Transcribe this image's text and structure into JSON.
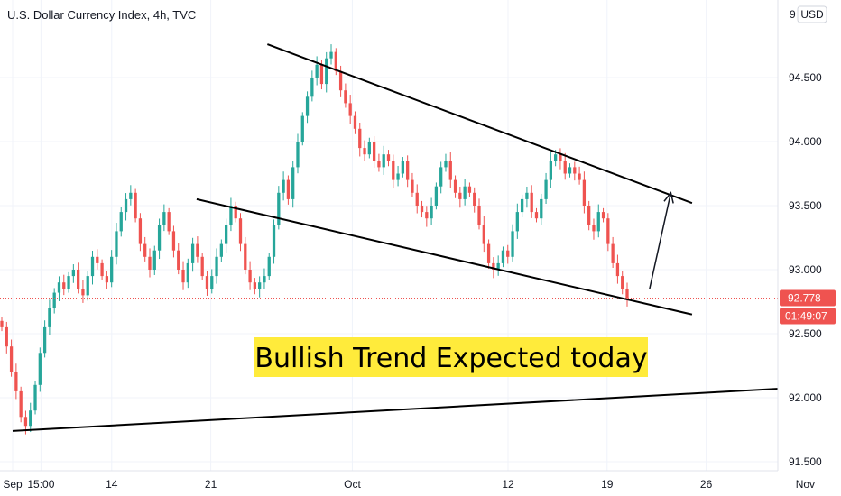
{
  "header": {
    "title": "U.S. Dollar Currency Index, 4h, TVC",
    "currency": "USD",
    "price_axis_top_partial": "9"
  },
  "chart_data": {
    "type": "candlestick",
    "title": "U.S. Dollar Currency Index, 4h, TVC",
    "ylim": [
      91.45,
      95.05
    ],
    "y_ticks": [
      {
        "value": 94.5,
        "label": "94.500"
      },
      {
        "value": 94.0,
        "label": "94.000"
      },
      {
        "value": 93.5,
        "label": "93.500"
      },
      {
        "value": 93.0,
        "label": "93.000"
      },
      {
        "value": 92.5,
        "label": "92.500"
      },
      {
        "value": 92.0,
        "label": "92.000"
      },
      {
        "value": 91.5,
        "label": "91.500"
      }
    ],
    "x_ticks": [
      {
        "label": "Sep",
        "date": "2020-09-07"
      },
      {
        "label": "15:00",
        "date": "2020-09-09"
      },
      {
        "label": "14",
        "date": "2020-09-14"
      },
      {
        "label": "21",
        "date": "2020-09-21"
      },
      {
        "label": "Oct",
        "date": "2020-10-01"
      },
      {
        "label": "12",
        "date": "2020-10-12"
      },
      {
        "label": "19",
        "date": "2020-10-19"
      },
      {
        "label": "26",
        "date": "2020-10-26"
      },
      {
        "label": "Nov",
        "date": "2020-11-02"
      }
    ],
    "series": [
      {
        "values": [
          92.55,
          92.4,
          92.2,
          92.05,
          91.85,
          91.78,
          91.9,
          92.1,
          92.35,
          92.55,
          92.7,
          92.82,
          92.9,
          92.85,
          92.95,
          93.0,
          92.85,
          92.8,
          92.95,
          93.1,
          93.05,
          92.95,
          92.9,
          93.1,
          93.3,
          93.45,
          93.55,
          93.6,
          93.4,
          93.2,
          93.1,
          93.0,
          93.15,
          93.35,
          93.45,
          93.3,
          93.15,
          93.0,
          92.9,
          93.05,
          93.2,
          93.1,
          92.95,
          92.85,
          92.95,
          93.1,
          93.2,
          93.35,
          93.5,
          93.4,
          93.2,
          93.0,
          92.9,
          92.85,
          92.9,
          92.95,
          93.1,
          93.35,
          93.6,
          93.7,
          93.55,
          93.8,
          94.0,
          94.2,
          94.35,
          94.5,
          94.6,
          94.45,
          94.65,
          94.7,
          94.55,
          94.4,
          94.3,
          94.2,
          94.1,
          93.95,
          93.9,
          94.0,
          93.85,
          93.8,
          93.9,
          93.85,
          93.7,
          93.75,
          93.85,
          93.7,
          93.6,
          93.5,
          93.45,
          93.4,
          93.5,
          93.65,
          93.8,
          93.85,
          93.7,
          93.6,
          93.55,
          93.65,
          93.6,
          93.5,
          93.35,
          93.2,
          93.05,
          93.0,
          93.05,
          93.15,
          93.1,
          93.3,
          93.45,
          93.55,
          93.6,
          93.45,
          93.4,
          93.55,
          93.7,
          93.85,
          93.9,
          93.85,
          93.75,
          93.8,
          93.75,
          93.7,
          93.5,
          93.35,
          93.3,
          93.45,
          93.4,
          93.2,
          93.05,
          92.95,
          92.85,
          92.778
        ]
      }
    ],
    "last_price": {
      "value": 92.778,
      "label": "92.778",
      "countdown": "01:49:07"
    },
    "trendlines": [
      {
        "name": "upper-channel",
        "from": {
          "date": "2020-09-25 00:00",
          "value": 94.76
        },
        "to": {
          "date": "2020-10-25 00:00",
          "value": 93.52
        }
      },
      {
        "name": "lower-channel",
        "from": {
          "date": "2020-09-20 00:00",
          "value": 93.55
        },
        "to": {
          "date": "2020-10-25 00:00",
          "value": 92.65
        }
      },
      {
        "name": "long-support",
        "from": {
          "date": "2020-09-07 00:00",
          "value": 91.74
        },
        "to": {
          "date": "2020-11-05 00:00",
          "value": 92.1
        }
      }
    ],
    "arrow": {
      "from": {
        "date": "2020-10-22 00:00",
        "value": 92.85
      },
      "to": {
        "date": "2020-10-23 12:00",
        "value": 93.6
      }
    },
    "annotation": {
      "text": "Bullish Trend Expected today",
      "background": "#ffeb3b"
    },
    "grid": true,
    "colors": {
      "up": "#26a69a",
      "down": "#ef5350",
      "last_price": "#ef5350",
      "trendline": "#000000"
    }
  }
}
